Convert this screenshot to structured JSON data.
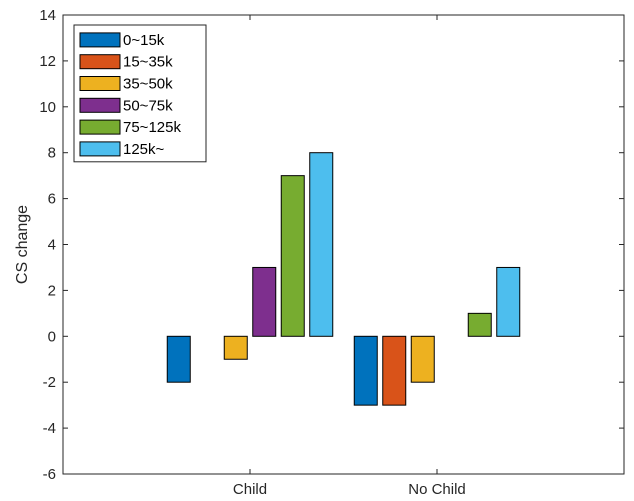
{
  "chart_data": {
    "type": "bar",
    "title": "",
    "xlabel": "",
    "ylabel": "CS change",
    "categories": [
      "Child",
      "No Child"
    ],
    "ylim": [
      -6,
      14
    ],
    "yticks": [
      -6,
      -4,
      -2,
      0,
      2,
      4,
      6,
      8,
      10,
      12,
      14
    ],
    "grid": false,
    "legend_position": "top-left",
    "series": [
      {
        "name": "0~15k",
        "color": "#0072BD",
        "values": [
          -2,
          -3
        ]
      },
      {
        "name": "15~35k",
        "color": "#D95319",
        "values": [
          0,
          -3
        ]
      },
      {
        "name": "35~50k",
        "color": "#EDB120",
        "values": [
          -1,
          -2
        ]
      },
      {
        "name": "50~75k",
        "color": "#7E2F8E",
        "values": [
          3,
          0
        ]
      },
      {
        "name": "75~125k",
        "color": "#77AC30",
        "values": [
          7,
          1
        ]
      },
      {
        "name": "125k~",
        "color": "#4DBEEE",
        "values": [
          8,
          3
        ]
      }
    ]
  }
}
